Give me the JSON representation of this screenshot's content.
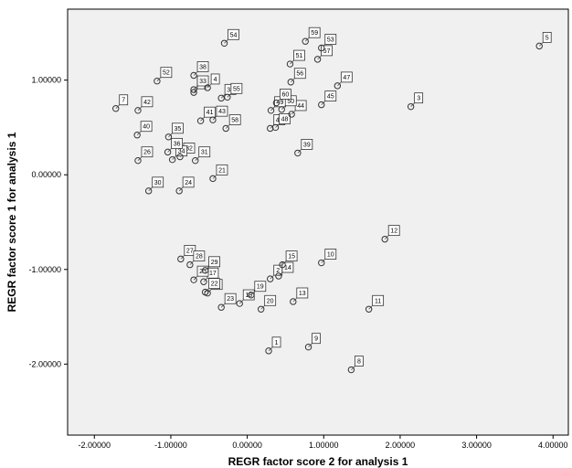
{
  "chart_data": {
    "type": "scatter",
    "title": "",
    "xlabel": "REGR factor score   2 for analysis 1",
    "ylabel": "REGR factor score   1 for analysis 1",
    "xlim": [
      -2.35,
      4.2
    ],
    "ylim": [
      -2.75,
      1.75
    ],
    "grid": false,
    "legend": "none",
    "x_ticks": [
      -2,
      -1,
      0,
      1,
      2,
      3,
      4
    ],
    "x_tick_labels": [
      "-2.00000",
      "-1.00000",
      "0.00000",
      "1.00000",
      "2.00000",
      "3.00000",
      "4.00000"
    ],
    "y_ticks": [
      1,
      0,
      -1,
      -2
    ],
    "y_tick_labels": [
      "1.00000",
      "0.00000",
      "-1.00000",
      "-2.00000"
    ],
    "colors": {
      "plot_background": "#f0f0f0",
      "marker_stroke": "#333333",
      "axis": "#000000"
    },
    "points": [
      {
        "label": "1",
        "x": 0.28,
        "y": -1.86
      },
      {
        "label": "2",
        "x": 0.3,
        "y": -1.1
      },
      {
        "label": "3",
        "x": 2.14,
        "y": 0.72
      },
      {
        "label": "4",
        "x": -0.52,
        "y": 0.92
      },
      {
        "label": "5",
        "x": 3.82,
        "y": 1.36
      },
      {
        "label": "6",
        "x": -0.7,
        "y": 0.87
      },
      {
        "label": "7",
        "x": -1.72,
        "y": 0.7
      },
      {
        "label": "8",
        "x": 1.36,
        "y": -2.06
      },
      {
        "label": "9",
        "x": 0.8,
        "y": -1.82
      },
      {
        "label": "10",
        "x": 0.97,
        "y": -0.93
      },
      {
        "label": "11",
        "x": 1.59,
        "y": -1.42
      },
      {
        "label": "12",
        "x": 1.8,
        "y": -0.68
      },
      {
        "label": "13",
        "x": 0.6,
        "y": -1.34
      },
      {
        "label": "14",
        "x": 0.41,
        "y": -1.07
      },
      {
        "label": "15",
        "x": 0.46,
        "y": -0.95
      },
      {
        "label": "16",
        "x": -0.52,
        "y": -1.25
      },
      {
        "label": "17",
        "x": -0.57,
        "y": -1.13
      },
      {
        "label": "18",
        "x": -0.1,
        "y": -1.36
      },
      {
        "label": "19",
        "x": 0.05,
        "y": -1.27
      },
      {
        "label": "20",
        "x": 0.18,
        "y": -1.42
      },
      {
        "label": "21",
        "x": -0.45,
        "y": -0.04
      },
      {
        "label": "22",
        "x": -0.55,
        "y": -1.24
      },
      {
        "label": "23",
        "x": -0.34,
        "y": -1.4
      },
      {
        "label": "24",
        "x": -0.89,
        "y": -0.17
      },
      {
        "label": "25",
        "x": -0.7,
        "y": -1.11
      },
      {
        "label": "26",
        "x": -1.43,
        "y": 0.15
      },
      {
        "label": "27",
        "x": -0.87,
        "y": -0.89
      },
      {
        "label": "28",
        "x": -0.75,
        "y": -0.95
      },
      {
        "label": "29",
        "x": -0.55,
        "y": -1.01
      },
      {
        "label": "30",
        "x": -1.29,
        "y": -0.17
      },
      {
        "label": "31",
        "x": -0.68,
        "y": 0.15
      },
      {
        "label": "32",
        "x": -0.88,
        "y": 0.19
      },
      {
        "label": "33",
        "x": -0.7,
        "y": 0.9
      },
      {
        "label": "34",
        "x": -0.98,
        "y": 0.16
      },
      {
        "label": "35",
        "x": -1.03,
        "y": 0.4
      },
      {
        "label": "36",
        "x": -1.04,
        "y": 0.24
      },
      {
        "label": "37",
        "x": -0.34,
        "y": 0.81
      },
      {
        "label": "38",
        "x": -0.7,
        "y": 1.05
      },
      {
        "label": "39",
        "x": 0.66,
        "y": 0.23
      },
      {
        "label": "40",
        "x": -1.44,
        "y": 0.42
      },
      {
        "label": "41",
        "x": -0.61,
        "y": 0.57
      },
      {
        "label": "42",
        "x": -1.43,
        "y": 0.68
      },
      {
        "label": "43",
        "x": -0.45,
        "y": 0.58
      },
      {
        "label": "44",
        "x": 0.58,
        "y": 0.64
      },
      {
        "label": "45",
        "x": 0.97,
        "y": 0.74
      },
      {
        "label": "46",
        "x": 0.3,
        "y": 0.49
      },
      {
        "label": "47",
        "x": 1.18,
        "y": 0.94
      },
      {
        "label": "48",
        "x": 0.37,
        "y": 0.5
      },
      {
        "label": "49",
        "x": 0.31,
        "y": 0.68
      },
      {
        "label": "50",
        "x": 0.45,
        "y": 0.69
      },
      {
        "label": "51",
        "x": 0.56,
        "y": 1.17
      },
      {
        "label": "52",
        "x": -1.18,
        "y": 0.99
      },
      {
        "label": "53",
        "x": 0.97,
        "y": 1.34
      },
      {
        "label": "54",
        "x": -0.3,
        "y": 1.39
      },
      {
        "label": "55",
        "x": -0.26,
        "y": 0.82
      },
      {
        "label": "56",
        "x": 0.57,
        "y": 0.98
      },
      {
        "label": "57",
        "x": 0.92,
        "y": 1.22
      },
      {
        "label": "58",
        "x": -0.28,
        "y": 0.49
      },
      {
        "label": "59",
        "x": 0.76,
        "y": 1.41
      },
      {
        "label": "60",
        "x": 0.38,
        "y": 0.76
      }
    ]
  }
}
